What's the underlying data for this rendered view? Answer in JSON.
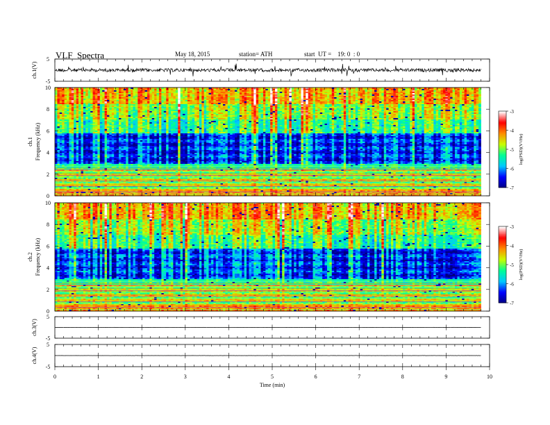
{
  "header": {
    "title": "VLF  Spectra",
    "date": "May 18, 2015",
    "station": "station= ATH",
    "start": "start  UT =    19: 0  : 0"
  },
  "chart_data": {
    "type": "heatmap",
    "xlabel": "Time  (min)",
    "xlim": [
      0,
      10
    ],
    "x_ticks": [
      "0",
      "1",
      "2",
      "3",
      "4",
      "5",
      "6",
      "7",
      "8",
      "9",
      "10"
    ],
    "data_end_min": 9.8,
    "panels": [
      {
        "id": "ch1_wave",
        "type": "line",
        "ylabel": "ch.1(V)",
        "ylim": [
          -5,
          5
        ],
        "y_ticks": [
          "5",
          "-5"
        ],
        "baseline_v": 0,
        "noise_amp_v": 1.5
      },
      {
        "id": "ch1_spec",
        "type": "heatmap",
        "ylabel": "ch.1\nFrequency  (kHz)",
        "ylim": [
          0,
          10
        ],
        "y_ticks": [
          "0",
          "2",
          "4",
          "6",
          "8",
          "10"
        ],
        "colorbar": {
          "label": "log(PSD)(V²/Hz)",
          "range": [
            -7,
            -3
          ],
          "ticks": [
            "-3",
            "-4",
            "-5",
            "-6",
            "-7"
          ]
        }
      },
      {
        "id": "ch2_spec",
        "type": "heatmap",
        "ylabel": "ch.2\nFrequency  (kHz)",
        "ylim": [
          0,
          10
        ],
        "y_ticks": [
          "0",
          "2",
          "4",
          "6",
          "8",
          "10"
        ],
        "colorbar": {
          "label": "log(PSD)(V²/Hz)",
          "range": [
            -7,
            -3
          ],
          "ticks": [
            "-3",
            "-4",
            "-5",
            "-6",
            "-7"
          ]
        }
      },
      {
        "id": "ch3_wave",
        "type": "line",
        "ylabel": "ch.3(V)",
        "ylim": [
          -5,
          5
        ],
        "y_ticks": [
          "5",
          "-5"
        ],
        "baseline_v": 0,
        "noise_amp_v": 0.1
      },
      {
        "id": "ch4_wave",
        "type": "line",
        "ylabel": "ch.4(V)",
        "ylim": [
          -5,
          5
        ],
        "y_ticks": [
          "5",
          "-5"
        ],
        "baseline_v": 0,
        "noise_amp_v": 0.05
      }
    ],
    "colors": {
      "scale": [
        "#000080",
        "#0000ff",
        "#00c8ff",
        "#00ff96",
        "#c8ff00",
        "#ff8c00",
        "#ff0000",
        "#ffffff"
      ]
    }
  }
}
